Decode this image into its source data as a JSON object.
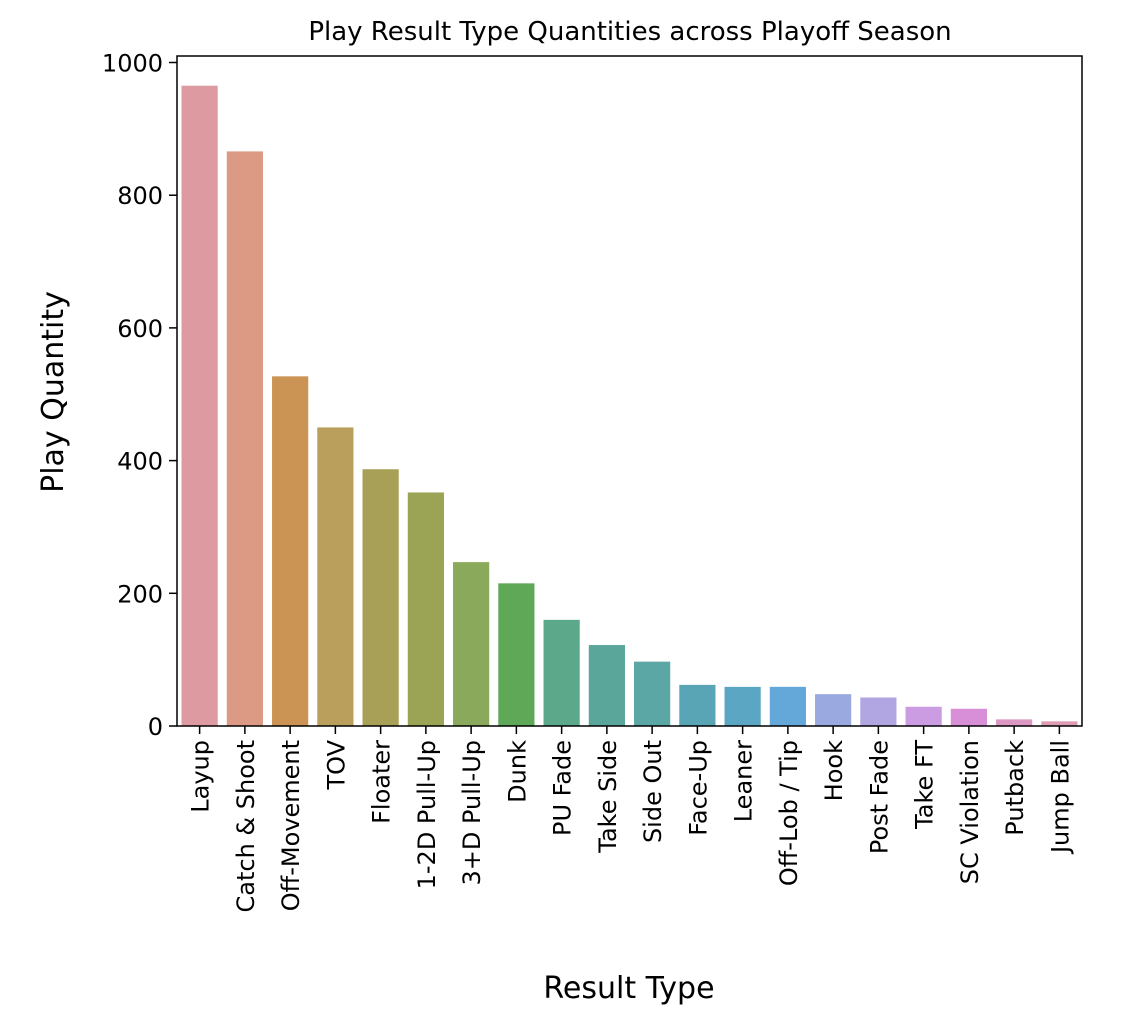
{
  "chart_data": {
    "type": "bar",
    "title": "Play Result Type Quantities across Playoff Season",
    "xlabel": "Result Type",
    "ylabel": "Play Quantity",
    "ylim": [
      0,
      1000
    ],
    "yticks": [
      0,
      200,
      400,
      600,
      800,
      1000
    ],
    "grid": false,
    "categories": [
      "Layup",
      "Catch & Shoot",
      "Off-Movement",
      "TOV",
      "Floater",
      "1-2D Pull-Up",
      "3+D Pull-Up",
      "Dunk",
      "PU Fade",
      "Take Side",
      "Side Out",
      "Face-Up",
      "Leaner",
      "Off-Lob / Tip",
      "Hook",
      "Post Fade",
      "Take FT",
      "SC Violation",
      "Putback",
      "Jump Ball"
    ],
    "values": [
      965,
      866,
      527,
      450,
      387,
      352,
      247,
      215,
      160,
      122,
      97,
      62,
      59,
      59,
      48,
      43,
      29,
      26,
      10,
      7
    ],
    "colors": [
      "#de9aa1",
      "#dc9a84",
      "#cb9455",
      "#b99e5c",
      "#a8a057",
      "#9ba454",
      "#8aa95a",
      "#5ea857",
      "#5ca88a",
      "#5aa69a",
      "#5ba7a6",
      "#5aa5b5",
      "#5ba6c2",
      "#63a8d8",
      "#9aaae0",
      "#b2a6e2",
      "#cc9ce3",
      "#d98ed8",
      "#dc97c3",
      "#de9bb4"
    ]
  }
}
